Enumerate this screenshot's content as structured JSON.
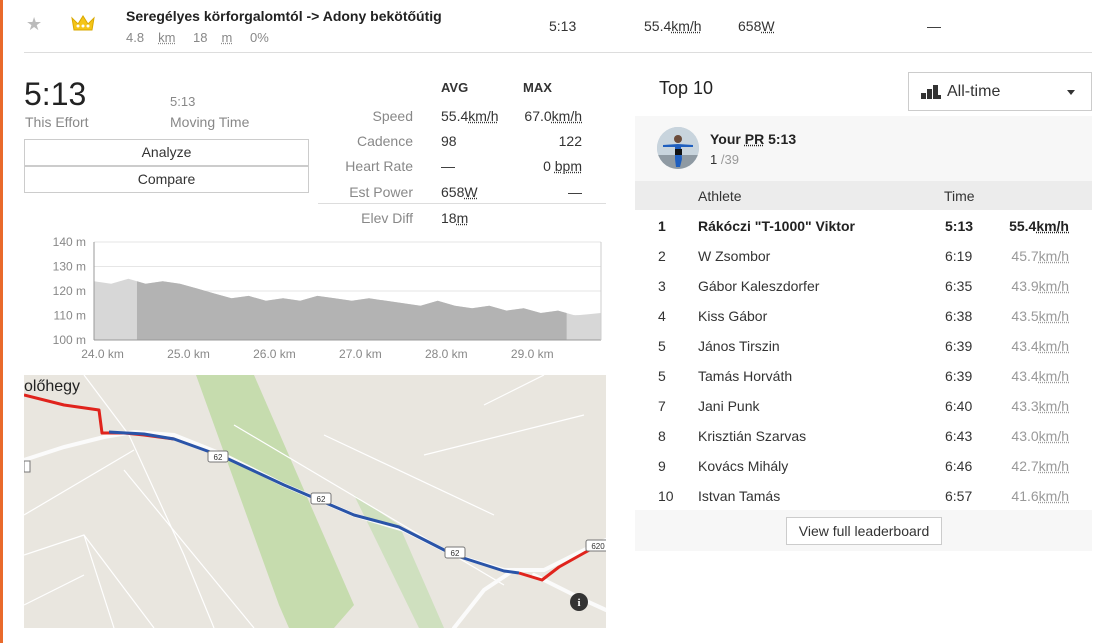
{
  "segment": {
    "name": "Seregélyes körforgalomtól -> Adony bekötőútig",
    "distance_value": "4.8",
    "distance_unit": "km",
    "elev_value": "18",
    "elev_unit": "m",
    "grade": "0%",
    "time": "5:13",
    "speed_value": "55.4",
    "speed_unit": "km/h",
    "power_value": "658",
    "power_unit": "W",
    "hr": "—"
  },
  "effort": {
    "time": "5:13",
    "time_label": "This Effort",
    "moving_time": "5:13",
    "moving_label": "Moving Time",
    "analyze_label": "Analyze",
    "compare_label": "Compare"
  },
  "stats": {
    "avg_header": "AVG",
    "max_header": "MAX",
    "rows": [
      {
        "label": "Speed",
        "avg": "55.4",
        "avg_unit": "km/h",
        "max": "67.0",
        "max_unit": "km/h"
      },
      {
        "label": "Cadence",
        "avg": "98",
        "avg_unit": "",
        "max": "122",
        "max_unit": ""
      },
      {
        "label": "Heart Rate",
        "avg": "—",
        "avg_unit": "",
        "max": "0",
        "max_unit": "bpm"
      },
      {
        "label": "Est Power",
        "avg": "658",
        "avg_unit": "W",
        "max": "—",
        "max_unit": ""
      },
      {
        "label": "Elev Diff",
        "avg": "18",
        "avg_unit": "m",
        "max": "",
        "max_unit": ""
      }
    ]
  },
  "chart_data": {
    "type": "area",
    "xlabel": "",
    "ylabel": "",
    "x_unit": "km",
    "y_unit": "m",
    "ylim": [
      100,
      140
    ],
    "xlim": [
      23.9,
      29.8
    ],
    "y_ticks": [
      "140 m",
      "130 m",
      "120 m",
      "110 m",
      "100 m"
    ],
    "x_ticks": [
      "24.0 km",
      "25.0 km",
      "26.0 km",
      "27.0 km",
      "28.0 km",
      "29.0 km"
    ],
    "highlight_range": [
      24.4,
      29.4
    ],
    "x": [
      23.9,
      24.1,
      24.3,
      24.5,
      24.7,
      24.9,
      25.1,
      25.3,
      25.5,
      25.7,
      25.9,
      26.1,
      26.3,
      26.5,
      26.7,
      26.9,
      27.1,
      27.3,
      27.5,
      27.7,
      27.9,
      28.1,
      28.3,
      28.5,
      28.7,
      28.9,
      29.1,
      29.3,
      29.5,
      29.8
    ],
    "y": [
      124,
      123,
      125,
      123,
      124,
      123,
      121,
      119,
      117,
      118,
      116,
      117,
      116,
      118,
      117,
      116,
      117,
      116,
      115,
      114,
      116,
      114,
      113,
      114,
      112,
      113,
      111,
      112,
      110,
      111
    ]
  },
  "map": {
    "place_label": "olőhegy",
    "road_badge_1": "62",
    "road_badge_2": "62",
    "road_badge_3": "62",
    "road_badge_4": "620",
    "info_icon": "i"
  },
  "leaderboard": {
    "title": "Top 10",
    "filter_label": "All-time",
    "pr_label": "Your",
    "pr_abbr": "PR",
    "pr_time": "5:13",
    "pr_rank": "1",
    "pr_total": "/39",
    "col_athlete": "Athlete",
    "col_time": "Time",
    "rows": [
      {
        "rank": "1",
        "athlete": "Rákóczi \"T-1000\" Viktor",
        "time": "5:13",
        "speed": "55.4",
        "unit": "km/h",
        "me": true
      },
      {
        "rank": "2",
        "athlete": "W Zsombor",
        "time": "6:19",
        "speed": "45.7",
        "unit": "km/h",
        "me": false
      },
      {
        "rank": "3",
        "athlete": "Gábor Kaleszdorfer",
        "time": "6:35",
        "speed": "43.9",
        "unit": "km/h",
        "me": false
      },
      {
        "rank": "4",
        "athlete": "Kiss Gábor",
        "time": "6:38",
        "speed": "43.5",
        "unit": "km/h",
        "me": false
      },
      {
        "rank": "5",
        "athlete": "János Tirszin",
        "time": "6:39",
        "speed": "43.4",
        "unit": "km/h",
        "me": false
      },
      {
        "rank": "5",
        "athlete": "Tamás Horváth",
        "time": "6:39",
        "speed": "43.4",
        "unit": "km/h",
        "me": false
      },
      {
        "rank": "7",
        "athlete": "Jani Punk",
        "time": "6:40",
        "speed": "43.3",
        "unit": "km/h",
        "me": false
      },
      {
        "rank": "8",
        "athlete": "Krisztián Szarvas",
        "time": "6:43",
        "speed": "43.0",
        "unit": "km/h",
        "me": false
      },
      {
        "rank": "9",
        "athlete": "Kovács Mihály",
        "time": "6:46",
        "speed": "42.7",
        "unit": "km/h",
        "me": false
      },
      {
        "rank": "10",
        "athlete": "Istvan Tamás",
        "time": "6:57",
        "speed": "41.6",
        "unit": "km/h",
        "me": false
      }
    ],
    "view_full_label": "View full leaderboard"
  },
  "colors": {
    "accent": "#e96a2b",
    "crown": "#f5c518",
    "route_blue": "#2a54a8",
    "route_red": "#e0231c",
    "elev_fill": "#b3b3b3",
    "elev_fill_light": "#d7d7d7"
  }
}
